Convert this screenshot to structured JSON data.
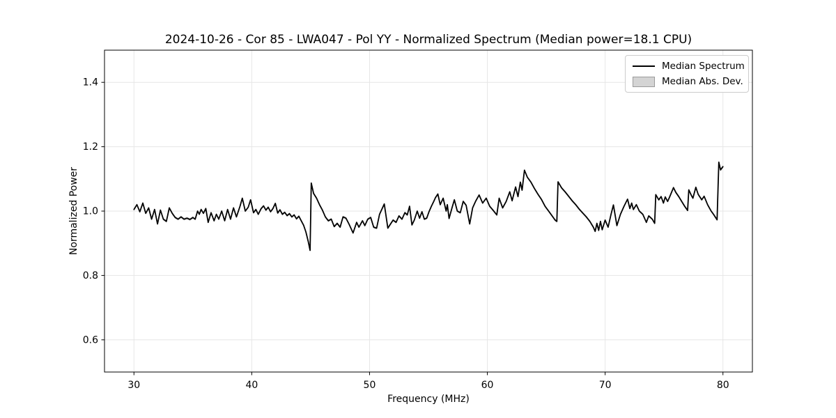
{
  "chart_data": {
    "type": "line",
    "title": "2024-10-26 - Cor 85 - LWA047 - Pol YY - Normalized Spectrum (Median power=18.1 CPU)",
    "xlabel": "Frequency (MHz)",
    "ylabel": "Normalized Power",
    "xlim": [
      27.5,
      82.5
    ],
    "ylim": [
      0.5,
      1.5
    ],
    "grid": true,
    "x_ticks": [
      {
        "v": 30,
        "label": "30"
      },
      {
        "v": 40,
        "label": "40"
      },
      {
        "v": 50,
        "label": "50"
      },
      {
        "v": 60,
        "label": "60"
      },
      {
        "v": 70,
        "label": "70"
      },
      {
        "v": 80,
        "label": "80"
      }
    ],
    "y_ticks": [
      {
        "v": 0.6,
        "label": "0.6"
      },
      {
        "v": 0.8,
        "label": "0.8"
      },
      {
        "v": 1.0,
        "label": "1.0"
      },
      {
        "v": 1.2,
        "label": "1.2"
      },
      {
        "v": 1.4,
        "label": "1.4"
      }
    ],
    "legend": {
      "position": "upper right",
      "entries": [
        {
          "label": "Median Spectrum",
          "type": "line",
          "color": "#000000"
        },
        {
          "label": "Median Abs. Dev.",
          "type": "patch",
          "color": "#d4d4d4"
        }
      ]
    },
    "colors": {
      "line": "#000000",
      "band": "#cfcfcf",
      "grid": "#e6e6e6",
      "frame": "#000000"
    },
    "mad_band_halfwidth": 0.004,
    "series": [
      {
        "name": "Median Spectrum",
        "points": [
          [
            30.0,
            1.005
          ],
          [
            30.25,
            1.02
          ],
          [
            30.5,
            0.998
          ],
          [
            30.75,
            1.025
          ],
          [
            31.0,
            0.993
          ],
          [
            31.25,
            1.01
          ],
          [
            31.5,
            0.975
          ],
          [
            31.75,
            1.005
          ],
          [
            32.0,
            0.96
          ],
          [
            32.25,
            1.003
          ],
          [
            32.5,
            0.975
          ],
          [
            32.75,
            0.968
          ],
          [
            33.0,
            1.01
          ],
          [
            33.25,
            0.993
          ],
          [
            33.5,
            0.98
          ],
          [
            33.75,
            0.975
          ],
          [
            34.0,
            0.982
          ],
          [
            34.25,
            0.975
          ],
          [
            34.5,
            0.978
          ],
          [
            34.75,
            0.974
          ],
          [
            35.0,
            0.98
          ],
          [
            35.2,
            0.975
          ],
          [
            35.4,
            1.0
          ],
          [
            35.55,
            0.99
          ],
          [
            35.7,
            1.005
          ],
          [
            35.9,
            0.993
          ],
          [
            36.1,
            1.008
          ],
          [
            36.3,
            0.965
          ],
          [
            36.55,
            0.995
          ],
          [
            36.8,
            0.97
          ],
          [
            37.0,
            0.99
          ],
          [
            37.2,
            0.975
          ],
          [
            37.45,
            1.0
          ],
          [
            37.7,
            0.97
          ],
          [
            37.95,
            1.005
          ],
          [
            38.2,
            0.975
          ],
          [
            38.45,
            1.01
          ],
          [
            38.7,
            0.982
          ],
          [
            39.0,
            1.015
          ],
          [
            39.2,
            1.04
          ],
          [
            39.45,
            1.0
          ],
          [
            39.7,
            1.012
          ],
          [
            39.9,
            1.035
          ],
          [
            40.15,
            0.995
          ],
          [
            40.35,
            1.005
          ],
          [
            40.55,
            0.99
          ],
          [
            40.8,
            1.008
          ],
          [
            41.0,
            1.016
          ],
          [
            41.2,
            1.003
          ],
          [
            41.4,
            1.012
          ],
          [
            41.6,
            0.998
          ],
          [
            41.8,
            1.008
          ],
          [
            42.0,
            1.024
          ],
          [
            42.2,
            0.994
          ],
          [
            42.4,
            1.004
          ],
          [
            42.6,
            0.99
          ],
          [
            42.8,
            0.996
          ],
          [
            43.0,
            0.986
          ],
          [
            43.2,
            0.992
          ],
          [
            43.4,
            0.982
          ],
          [
            43.6,
            0.988
          ],
          [
            43.8,
            0.976
          ],
          [
            44.0,
            0.984
          ],
          [
            44.2,
            0.97
          ],
          [
            44.4,
            0.956
          ],
          [
            44.6,
            0.935
          ],
          [
            44.8,
            0.905
          ],
          [
            44.95,
            0.878
          ],
          [
            45.05,
            1.087
          ],
          [
            45.25,
            1.055
          ],
          [
            45.5,
            1.04
          ],
          [
            45.75,
            1.02
          ],
          [
            46.0,
            1.003
          ],
          [
            46.25,
            0.982
          ],
          [
            46.5,
            0.97
          ],
          [
            46.75,
            0.975
          ],
          [
            47.0,
            0.952
          ],
          [
            47.25,
            0.962
          ],
          [
            47.5,
            0.95
          ],
          [
            47.75,
            0.982
          ],
          [
            48.0,
            0.978
          ],
          [
            48.25,
            0.96
          ],
          [
            48.6,
            0.932
          ],
          [
            48.9,
            0.965
          ],
          [
            49.1,
            0.95
          ],
          [
            49.4,
            0.97
          ],
          [
            49.6,
            0.955
          ],
          [
            49.85,
            0.975
          ],
          [
            50.1,
            0.98
          ],
          [
            50.35,
            0.95
          ],
          [
            50.6,
            0.947
          ],
          [
            50.85,
            0.99
          ],
          [
            51.25,
            1.022
          ],
          [
            51.55,
            0.947
          ],
          [
            51.75,
            0.958
          ],
          [
            52.0,
            0.972
          ],
          [
            52.25,
            0.965
          ],
          [
            52.5,
            0.985
          ],
          [
            52.75,
            0.975
          ],
          [
            53.0,
            0.995
          ],
          [
            53.2,
            0.988
          ],
          [
            53.4,
            1.015
          ],
          [
            53.6,
            0.957
          ],
          [
            53.8,
            0.972
          ],
          [
            54.05,
            1.0
          ],
          [
            54.25,
            0.978
          ],
          [
            54.45,
            0.998
          ],
          [
            54.65,
            0.975
          ],
          [
            54.85,
            0.978
          ],
          [
            55.05,
            0.998
          ],
          [
            55.25,
            1.015
          ],
          [
            55.45,
            1.03
          ],
          [
            55.6,
            1.042
          ],
          [
            55.8,
            1.053
          ],
          [
            56.0,
            1.02
          ],
          [
            56.25,
            1.04
          ],
          [
            56.5,
            1.0
          ],
          [
            56.6,
            1.02
          ],
          [
            56.75,
            0.977
          ],
          [
            57.0,
            1.01
          ],
          [
            57.2,
            1.035
          ],
          [
            57.45,
            1.0
          ],
          [
            57.7,
            0.995
          ],
          [
            57.95,
            1.03
          ],
          [
            58.2,
            1.018
          ],
          [
            58.5,
            0.96
          ],
          [
            58.75,
            1.01
          ],
          [
            59.0,
            1.03
          ],
          [
            59.3,
            1.05
          ],
          [
            59.6,
            1.025
          ],
          [
            59.9,
            1.04
          ],
          [
            60.2,
            1.015
          ],
          [
            60.5,
            1.002
          ],
          [
            60.8,
            0.988
          ],
          [
            61.0,
            1.04
          ],
          [
            61.3,
            1.01
          ],
          [
            61.6,
            1.03
          ],
          [
            61.9,
            1.06
          ],
          [
            62.1,
            1.032
          ],
          [
            62.4,
            1.075
          ],
          [
            62.6,
            1.045
          ],
          [
            62.8,
            1.09
          ],
          [
            62.95,
            1.065
          ],
          [
            63.15,
            1.127
          ],
          [
            63.4,
            1.105
          ],
          [
            63.7,
            1.09
          ],
          [
            64.0,
            1.07
          ],
          [
            64.3,
            1.052
          ],
          [
            64.6,
            1.036
          ],
          [
            64.9,
            1.015
          ],
          [
            65.2,
            1.0
          ],
          [
            65.5,
            0.985
          ],
          [
            65.75,
            0.972
          ],
          [
            65.9,
            0.968
          ],
          [
            66.0,
            1.091
          ],
          [
            66.3,
            1.072
          ],
          [
            66.6,
            1.06
          ],
          [
            66.9,
            1.046
          ],
          [
            67.2,
            1.032
          ],
          [
            67.5,
            1.02
          ],
          [
            67.8,
            1.006
          ],
          [
            68.1,
            0.994
          ],
          [
            68.4,
            0.982
          ],
          [
            68.7,
            0.968
          ],
          [
            69.0,
            0.95
          ],
          [
            69.15,
            0.937
          ],
          [
            69.3,
            0.962
          ],
          [
            69.45,
            0.94
          ],
          [
            69.6,
            0.968
          ],
          [
            69.75,
            0.942
          ],
          [
            70.0,
            0.972
          ],
          [
            70.25,
            0.95
          ],
          [
            70.5,
            0.99
          ],
          [
            70.7,
            1.019
          ],
          [
            71.0,
            0.955
          ],
          [
            71.3,
            0.99
          ],
          [
            71.6,
            1.015
          ],
          [
            71.9,
            1.037
          ],
          [
            72.1,
            1.008
          ],
          [
            72.25,
            1.025
          ],
          [
            72.4,
            1.005
          ],
          [
            72.65,
            1.02
          ],
          [
            72.9,
            1.0
          ],
          [
            73.2,
            0.99
          ],
          [
            73.5,
            0.965
          ],
          [
            73.7,
            0.985
          ],
          [
            74.0,
            0.975
          ],
          [
            74.2,
            0.962
          ],
          [
            74.3,
            1.051
          ],
          [
            74.55,
            1.035
          ],
          [
            74.75,
            1.045
          ],
          [
            74.95,
            1.025
          ],
          [
            75.1,
            1.044
          ],
          [
            75.3,
            1.03
          ],
          [
            75.45,
            1.042
          ],
          [
            75.6,
            1.055
          ],
          [
            75.8,
            1.073
          ],
          [
            76.0,
            1.058
          ],
          [
            76.25,
            1.045
          ],
          [
            76.5,
            1.03
          ],
          [
            76.75,
            1.015
          ],
          [
            77.0,
            1.002
          ],
          [
            77.1,
            1.066
          ],
          [
            77.3,
            1.05
          ],
          [
            77.45,
            1.04
          ],
          [
            77.7,
            1.074
          ],
          [
            77.9,
            1.052
          ],
          [
            78.2,
            1.035
          ],
          [
            78.4,
            1.046
          ],
          [
            78.7,
            1.02
          ],
          [
            79.0,
            1.0
          ],
          [
            79.2,
            0.99
          ],
          [
            79.5,
            0.973
          ],
          [
            79.65,
            1.152
          ],
          [
            79.8,
            1.128
          ],
          [
            80.0,
            1.138
          ]
        ]
      }
    ]
  }
}
